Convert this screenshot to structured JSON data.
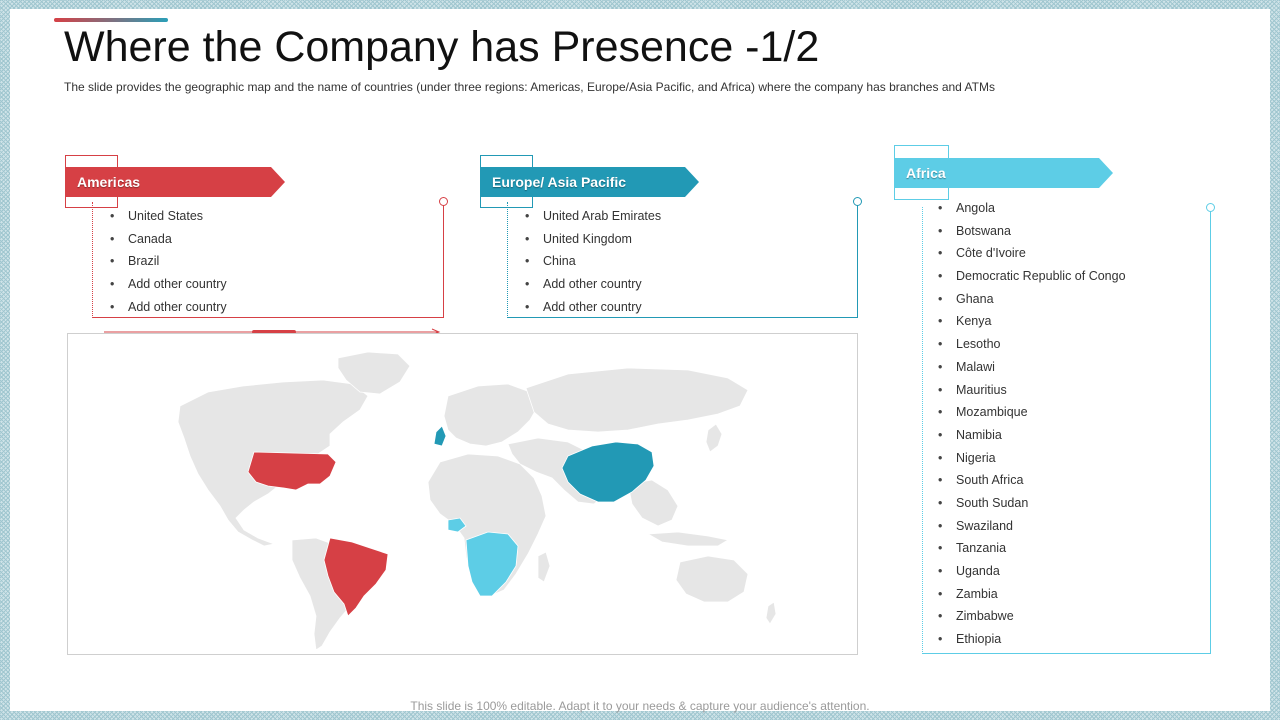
{
  "slide": {
    "title": "Where the Company has Presence -1/2",
    "subtitle": "The slide provides  the geographic  map and the name of countries (under three regions: Americas, Europe/Asia Pacific, and Africa) where  the company has branches and ATMs",
    "footer": "This slide is 100% editable. Adapt it to your needs & capture your audience's attention."
  },
  "colors": {
    "americas": "#d64045",
    "europe_asia": "#2299b5",
    "africa": "#5dcde6",
    "map_land": "#e6e6e6"
  },
  "regions": {
    "americas": {
      "label": "Americas",
      "countries": [
        "United States",
        "Canada",
        "Brazil",
        "Add other country",
        "Add other country"
      ]
    },
    "europe_asia": {
      "label": "Europe/ Asia Pacific",
      "countries": [
        "United Arab Emirates",
        "United Kingdom",
        "China",
        "Add other country",
        "Add other country"
      ]
    },
    "africa": {
      "label": "Africa",
      "countries": [
        "Angola",
        "Botswana",
        "Côte d'Ivoire",
        "Democratic Republic of Congo",
        "Ghana",
        "Kenya",
        "Lesotho",
        "Malawi",
        "Mauritius",
        "Mozambique",
        "Namibia",
        "Nigeria",
        "South Africa",
        "South Sudan",
        "Swaziland",
        "Tanzania",
        "Uganda",
        "Zambia",
        "Zimbabwe",
        "Ethiopia"
      ]
    }
  },
  "map": {
    "highlighted": {
      "americas": [
        "United States",
        "Brazil"
      ],
      "europe_asia": [
        "United Kingdom",
        "China"
      ],
      "africa": [
        "Southern and Central Africa"
      ]
    }
  }
}
